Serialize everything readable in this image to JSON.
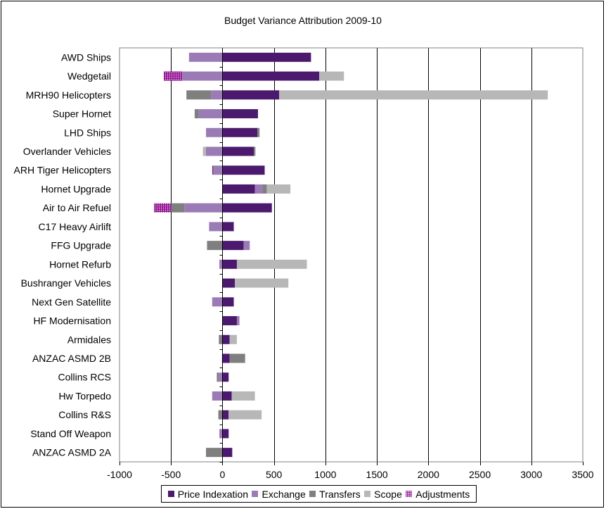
{
  "chart_data": {
    "type": "bar",
    "orientation": "horizontal",
    "stacked": true,
    "title": "Budget Variance Attribution 2009-10",
    "xlabel": "",
    "ylabel": "",
    "xlim": [
      -1000,
      3500
    ],
    "xticks": [
      -1000,
      -500,
      0,
      500,
      1000,
      1500,
      2000,
      2500,
      3000,
      3500
    ],
    "grid": "vertical",
    "legend_position": "bottom",
    "categories": [
      "AWD Ships",
      "Wedgetail",
      "MRH90 Helicopters",
      "Super Hornet",
      "LHD Ships",
      "Overlander Vehicles",
      "ARH Tiger Helicopters",
      "Hornet Upgrade",
      "Air to Air Refuel",
      "C17 Heavy Airlift",
      "FFG Upgrade",
      "Hornet Refurb",
      "Bushranger Vehicles",
      "Next Gen Satellite",
      "HF Modernisation",
      "Armidales",
      "ANZAC ASMD 2B",
      "Collins RCS",
      "Hw Torpedo",
      "Collins R&S",
      "Stand Off Weapon",
      "ANZAC ASMD 2A"
    ],
    "series": [
      {
        "name": "Price Indexation",
        "color": "#4b1a6e",
        "values": [
          860,
          940,
          550,
          345,
          340,
          305,
          410,
          315,
          480,
          110,
          205,
          140,
          120,
          110,
          140,
          70,
          70,
          60,
          90,
          60,
          60,
          95
        ]
      },
      {
        "name": "Exchange",
        "color": "#9b7bb5",
        "values": [
          -325,
          -390,
          -110,
          -230,
          -160,
          -160,
          -80,
          75,
          -370,
          -130,
          60,
          -30,
          0,
          -100,
          25,
          0,
          -5,
          -35,
          -100,
          0,
          -30,
          0
        ]
      },
      {
        "name": "Transfers",
        "color": "#7f7f7f",
        "values": [
          0,
          0,
          -240,
          -40,
          20,
          15,
          -10,
          40,
          -130,
          0,
          -150,
          0,
          0,
          0,
          0,
          -35,
          150,
          -20,
          0,
          -40,
          0,
          -160
        ]
      },
      {
        "name": "Scope",
        "color": "#b7b7b7",
        "values": [
          0,
          240,
          2610,
          0,
          0,
          -30,
          0,
          230,
          0,
          0,
          0,
          680,
          520,
          0,
          0,
          70,
          0,
          0,
          225,
          320,
          0,
          0
        ]
      },
      {
        "name": "Adjustments",
        "color": "#8e0b8e",
        "pattern": "dotted",
        "values": [
          0,
          -180,
          0,
          0,
          0,
          0,
          -10,
          0,
          -165,
          0,
          0,
          0,
          0,
          0,
          0,
          0,
          0,
          0,
          0,
          0,
          0,
          0
        ]
      }
    ]
  }
}
